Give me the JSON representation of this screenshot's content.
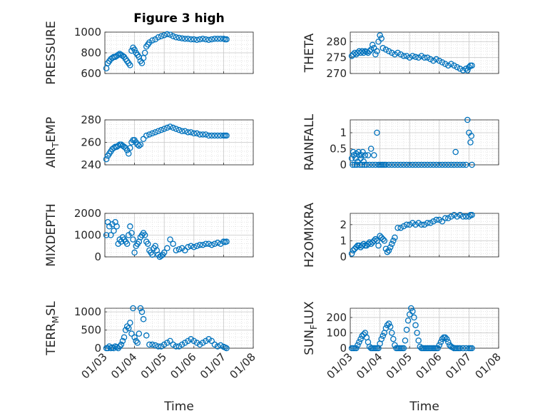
{
  "figure": {
    "title": "Figure 3 high"
  },
  "colors": {
    "marker": "#0072BD",
    "axis": "#262626",
    "grid": "#d4d4d4"
  },
  "chart_data": [
    {
      "type": "scatter",
      "ylabel": "PRESSURE",
      "xlabel": "",
      "ylim": [
        600,
        1000
      ],
      "yticks": [
        600,
        800,
        1000
      ],
      "xticks": [
        "01/03",
        "01/04",
        "01/05",
        "01/06",
        "01/07",
        "01/08"
      ],
      "grid": "on",
      "legend": "none",
      "x": [
        3.05,
        3.1,
        3.15,
        3.2,
        3.25,
        3.3,
        3.35,
        3.4,
        3.45,
        3.5,
        3.55,
        3.6,
        3.65,
        3.7,
        3.75,
        3.8,
        3.85,
        3.9,
        3.95,
        4.0,
        4.05,
        4.1,
        4.15,
        4.2,
        4.25,
        4.3,
        4.35,
        4.4,
        4.45,
        4.5,
        4.6,
        4.7,
        4.8,
        4.9,
        5.0,
        5.1,
        5.2,
        5.3,
        5.4,
        5.5,
        5.6,
        5.7,
        5.8,
        5.9,
        6.0,
        6.1,
        6.2,
        6.3,
        6.4,
        6.5,
        6.6,
        6.7,
        6.8,
        6.9,
        7.0,
        7.05,
        7.1
      ],
      "y": [
        650,
        700,
        720,
        740,
        750,
        760,
        760,
        770,
        780,
        790,
        780,
        770,
        760,
        740,
        720,
        700,
        680,
        820,
        850,
        830,
        800,
        780,
        760,
        720,
        700,
        750,
        800,
        860,
        880,
        900,
        920,
        930,
        950,
        960,
        970,
        980,
        975,
        960,
        950,
        945,
        940,
        935,
        935,
        930,
        930,
        925,
        930,
        935,
        930,
        925,
        930,
        935,
        935,
        935,
        935,
        930,
        930
      ]
    },
    {
      "type": "scatter",
      "ylabel": "THETA",
      "xlabel": "",
      "ylim": [
        270,
        283
      ],
      "yticks": [
        270,
        275,
        280
      ],
      "xticks": [
        "01/03",
        "01/04",
        "01/05",
        "01/06",
        "01/07",
        "01/08"
      ],
      "grid": "on",
      "legend": "none",
      "x": [
        3.05,
        3.1,
        3.15,
        3.2,
        3.25,
        3.3,
        3.35,
        3.4,
        3.45,
        3.5,
        3.55,
        3.6,
        3.65,
        3.7,
        3.75,
        3.8,
        3.85,
        3.9,
        3.95,
        4.0,
        4.05,
        4.1,
        4.2,
        4.3,
        4.4,
        4.5,
        4.6,
        4.7,
        4.8,
        4.9,
        5.0,
        5.1,
        5.2,
        5.3,
        5.4,
        5.5,
        5.6,
        5.7,
        5.8,
        5.9,
        6.0,
        6.1,
        6.2,
        6.3,
        6.4,
        6.5,
        6.6,
        6.7,
        6.8,
        6.9,
        6.95,
        7.0,
        7.05,
        7.1
      ],
      "y": [
        275.5,
        276,
        276.5,
        276,
        276.5,
        277,
        276.5,
        277,
        276.5,
        277,
        276.8,
        276.5,
        277,
        277.5,
        279,
        278,
        276,
        277,
        280,
        282,
        281,
        278,
        277.5,
        277,
        276.5,
        276,
        276.5,
        276,
        275.5,
        275.5,
        275,
        275.5,
        275.2,
        275,
        275.5,
        275,
        275,
        274.5,
        274,
        274.5,
        274,
        273.5,
        273,
        272.5,
        273,
        272.5,
        272,
        271.5,
        271,
        271.5,
        271,
        272,
        272.5,
        272.5
      ]
    },
    {
      "type": "scatter",
      "ylabel": "AIR_TEMP",
      "xlabel": "",
      "ylim": [
        240,
        280
      ],
      "yticks": [
        240,
        260,
        280
      ],
      "xticks": [
        "01/03",
        "01/04",
        "01/05",
        "01/06",
        "01/07",
        "01/08"
      ],
      "grid": "on",
      "legend": "none",
      "x": [
        3.05,
        3.1,
        3.15,
        3.2,
        3.25,
        3.3,
        3.35,
        3.4,
        3.45,
        3.5,
        3.55,
        3.6,
        3.65,
        3.7,
        3.75,
        3.8,
        3.85,
        3.9,
        3.95,
        4.0,
        4.05,
        4.1,
        4.15,
        4.2,
        4.3,
        4.4,
        4.5,
        4.6,
        4.7,
        4.8,
        4.9,
        5.0,
        5.1,
        5.2,
        5.3,
        5.4,
        5.5,
        5.6,
        5.7,
        5.8,
        5.9,
        6.0,
        6.1,
        6.2,
        6.3,
        6.4,
        6.5,
        6.6,
        6.7,
        6.8,
        6.9,
        7.0,
        7.05,
        7.1
      ],
      "y": [
        245,
        248,
        250,
        252,
        254,
        255,
        256,
        256,
        257,
        258,
        258,
        257,
        256,
        255,
        253,
        250,
        255,
        260,
        262,
        262,
        260,
        258,
        257,
        258,
        263,
        266,
        267,
        268,
        269,
        270,
        271,
        272,
        273,
        274,
        273,
        272,
        271,
        270,
        270,
        269,
        269,
        268,
        268,
        267,
        267,
        267,
        266,
        266,
        266,
        266,
        266,
        266,
        266,
        266
      ]
    },
    {
      "type": "scatter",
      "ylabel": "RAINFALL",
      "xlabel": "",
      "ylim": [
        0,
        1.4
      ],
      "yticks": [
        0,
        0.5,
        1
      ],
      "xticks": [
        "01/03",
        "01/04",
        "01/05",
        "01/06",
        "01/07",
        "01/08"
      ],
      "grid": "on",
      "legend": "none",
      "x": [
        3.05,
        3.08,
        3.1,
        3.12,
        3.15,
        3.18,
        3.2,
        3.22,
        3.25,
        3.28,
        3.3,
        3.32,
        3.35,
        3.38,
        3.4,
        3.42,
        3.45,
        3.48,
        3.5,
        3.55,
        3.6,
        3.65,
        3.7,
        3.75,
        3.8,
        3.85,
        3.9,
        3.95,
        4.0,
        4.05,
        4.1,
        4.15,
        4.2,
        4.3,
        4.4,
        4.5,
        4.6,
        4.7,
        4.8,
        4.9,
        5.0,
        5.1,
        5.2,
        5.3,
        5.4,
        5.5,
        5.6,
        5.7,
        5.8,
        5.9,
        6.0,
        6.1,
        6.2,
        6.3,
        6.4,
        6.5,
        6.55,
        6.6,
        6.7,
        6.8,
        6.9,
        6.95,
        7.0,
        7.05,
        7.08,
        7.1
      ],
      "y": [
        0.2,
        0,
        0.4,
        0.3,
        0,
        0.2,
        0.35,
        0,
        0.1,
        0.4,
        0.3,
        0,
        0.2,
        0.3,
        0,
        0.4,
        0.1,
        0,
        0.3,
        0,
        0.3,
        0,
        0.5,
        0,
        0.3,
        0,
        1.0,
        0,
        0,
        0,
        0,
        0,
        0,
        0,
        0,
        0,
        0,
        0,
        0,
        0,
        0,
        0,
        0,
        0,
        0,
        0,
        0,
        0,
        0,
        0,
        0,
        0,
        0,
        0,
        0,
        0,
        0.4,
        0,
        0,
        0,
        0,
        1.4,
        1.0,
        0.7,
        0.9,
        0
      ]
    },
    {
      "type": "scatter",
      "ylabel": "MIXDEPTH",
      "xlabel": "",
      "ylim": [
        0,
        2000
      ],
      "yticks": [
        0,
        1000,
        2000
      ],
      "xticks": [
        "01/03",
        "01/04",
        "01/05",
        "01/06",
        "01/07",
        "01/08"
      ],
      "grid": "on",
      "legend": "none",
      "x": [
        3.05,
        3.1,
        3.15,
        3.2,
        3.25,
        3.3,
        3.35,
        3.4,
        3.45,
        3.5,
        3.55,
        3.6,
        3.65,
        3.7,
        3.75,
        3.8,
        3.85,
        3.9,
        3.95,
        4.0,
        4.05,
        4.1,
        4.15,
        4.2,
        4.25,
        4.3,
        4.35,
        4.4,
        4.45,
        4.5,
        4.55,
        4.6,
        4.65,
        4.7,
        4.75,
        4.8,
        4.85,
        4.9,
        4.95,
        5.0,
        5.1,
        5.2,
        5.3,
        5.4,
        5.5,
        5.6,
        5.7,
        5.8,
        5.9,
        6.0,
        6.1,
        6.2,
        6.3,
        6.4,
        6.5,
        6.6,
        6.7,
        6.8,
        6.9,
        7.0,
        7.05,
        7.1
      ],
      "y": [
        1000,
        1600,
        1400,
        1000,
        1500,
        1200,
        1600,
        1400,
        600,
        800,
        700,
        900,
        800,
        700,
        600,
        1000,
        1400,
        1100,
        800,
        200,
        500,
        600,
        700,
        900,
        1000,
        1100,
        1000,
        700,
        600,
        300,
        200,
        100,
        400,
        500,
        300,
        100,
        0,
        50,
        100,
        200,
        400,
        800,
        600,
        300,
        350,
        400,
        300,
        450,
        500,
        450,
        500,
        550,
        550,
        600,
        600,
        550,
        600,
        650,
        600,
        700,
        680,
        700
      ]
    },
    {
      "type": "scatter",
      "ylabel": "H2OMIXRA",
      "xlabel": "",
      "ylim": [
        0,
        2.7
      ],
      "yticks": [
        0,
        1,
        2
      ],
      "xticks": [
        "01/03",
        "01/04",
        "01/05",
        "01/06",
        "01/07",
        "01/08"
      ],
      "grid": "on",
      "legend": "none",
      "x": [
        3.05,
        3.1,
        3.15,
        3.2,
        3.25,
        3.3,
        3.35,
        3.4,
        3.45,
        3.5,
        3.55,
        3.6,
        3.65,
        3.7,
        3.75,
        3.8,
        3.85,
        3.9,
        3.95,
        4.0,
        4.05,
        4.1,
        4.15,
        4.2,
        4.25,
        4.3,
        4.35,
        4.4,
        4.45,
        4.5,
        4.6,
        4.7,
        4.8,
        4.9,
        5.0,
        5.1,
        5.2,
        5.3,
        5.4,
        5.5,
        5.6,
        5.7,
        5.8,
        5.9,
        6.0,
        6.1,
        6.2,
        6.3,
        6.4,
        6.5,
        6.6,
        6.7,
        6.8,
        6.9,
        7.0,
        7.05,
        7.1
      ],
      "y": [
        0.2,
        0.4,
        0.5,
        0.6,
        0.7,
        0.7,
        0.6,
        0.7,
        0.8,
        0.7,
        0.7,
        0.8,
        0.9,
        0.8,
        0.9,
        1.0,
        1.1,
        1.0,
        0.7,
        1.3,
        1.2,
        1.1,
        1.0,
        0.5,
        0.3,
        0.4,
        0.6,
        0.8,
        1.0,
        1.2,
        1.8,
        1.8,
        1.9,
        2.0,
        2.0,
        2.1,
        2.0,
        2.1,
        2.0,
        2.0,
        2.1,
        2.1,
        2.2,
        2.3,
        2.3,
        2.2,
        2.4,
        2.4,
        2.5,
        2.6,
        2.5,
        2.6,
        2.5,
        2.5,
        2.5,
        2.6,
        2.6
      ]
    },
    {
      "type": "scatter",
      "ylabel": "TERR_MSL",
      "xlabel": "Time",
      "ylim": [
        0,
        1100
      ],
      "yticks": [
        0,
        500,
        1000
      ],
      "xticks": [
        "01/03",
        "01/04",
        "01/05",
        "01/06",
        "01/07",
        "01/08"
      ],
      "grid": "on",
      "legend": "none",
      "x": [
        3.05,
        3.1,
        3.15,
        3.2,
        3.25,
        3.3,
        3.35,
        3.4,
        3.45,
        3.5,
        3.55,
        3.6,
        3.65,
        3.7,
        3.75,
        3.8,
        3.85,
        3.9,
        3.95,
        4.0,
        4.05,
        4.1,
        4.15,
        4.2,
        4.25,
        4.3,
        4.4,
        4.5,
        4.6,
        4.7,
        4.8,
        4.9,
        5.0,
        5.1,
        5.2,
        5.3,
        5.4,
        5.5,
        5.6,
        5.7,
        5.8,
        5.9,
        6.0,
        6.1,
        6.2,
        6.3,
        6.4,
        6.5,
        6.6,
        6.7,
        6.8,
        6.9,
        7.0,
        7.05,
        7.1
      ],
      "y": [
        0,
        0,
        50,
        0,
        20,
        0,
        50,
        30,
        0,
        50,
        100,
        200,
        300,
        500,
        600,
        550,
        700,
        400,
        1100,
        300,
        200,
        150,
        400,
        1100,
        1000,
        800,
        350,
        100,
        100,
        80,
        50,
        50,
        100,
        150,
        200,
        100,
        50,
        50,
        100,
        150,
        200,
        250,
        200,
        150,
        100,
        150,
        200,
        250,
        200,
        100,
        50,
        80,
        40,
        20,
        0
      ]
    },
    {
      "type": "scatter",
      "ylabel": "SUN_FLUX",
      "xlabel": "Time",
      "ylim": [
        0,
        260
      ],
      "yticks": [
        0,
        100,
        200
      ],
      "xticks": [
        "01/03",
        "01/04",
        "01/05",
        "01/06",
        "01/07",
        "01/08"
      ],
      "grid": "on",
      "legend": "none",
      "x": [
        3.05,
        3.1,
        3.15,
        3.2,
        3.25,
        3.3,
        3.35,
        3.4,
        3.45,
        3.5,
        3.55,
        3.6,
        3.65,
        3.7,
        3.75,
        3.8,
        3.85,
        3.9,
        3.95,
        4.0,
        4.05,
        4.1,
        4.15,
        4.2,
        4.25,
        4.3,
        4.35,
        4.4,
        4.45,
        4.5,
        4.55,
        4.6,
        4.65,
        4.7,
        4.75,
        4.8,
        4.85,
        4.9,
        4.95,
        5.0,
        5.05,
        5.1,
        5.15,
        5.2,
        5.25,
        5.3,
        5.35,
        5.4,
        5.45,
        5.5,
        5.55,
        5.6,
        5.65,
        5.7,
        5.75,
        5.8,
        5.85,
        5.9,
        5.95,
        6.0,
        6.05,
        6.1,
        6.15,
        6.2,
        6.25,
        6.3,
        6.35,
        6.4,
        6.45,
        6.5,
        6.55,
        6.6,
        6.65,
        6.7,
        6.8,
        6.9,
        7.0,
        7.05,
        7.1
      ],
      "y": [
        0,
        0,
        0,
        0,
        20,
        40,
        60,
        80,
        90,
        100,
        70,
        40,
        10,
        0,
        0,
        0,
        0,
        0,
        0,
        30,
        60,
        80,
        100,
        130,
        150,
        160,
        140,
        100,
        60,
        20,
        0,
        0,
        0,
        0,
        0,
        0,
        50,
        120,
        180,
        220,
        260,
        240,
        200,
        150,
        100,
        50,
        10,
        0,
        0,
        0,
        0,
        0,
        0,
        0,
        0,
        0,
        0,
        0,
        0,
        20,
        40,
        60,
        70,
        70,
        60,
        40,
        20,
        10,
        5,
        0,
        0,
        0,
        0,
        0,
        0,
        0,
        0,
        0,
        0
      ]
    }
  ]
}
